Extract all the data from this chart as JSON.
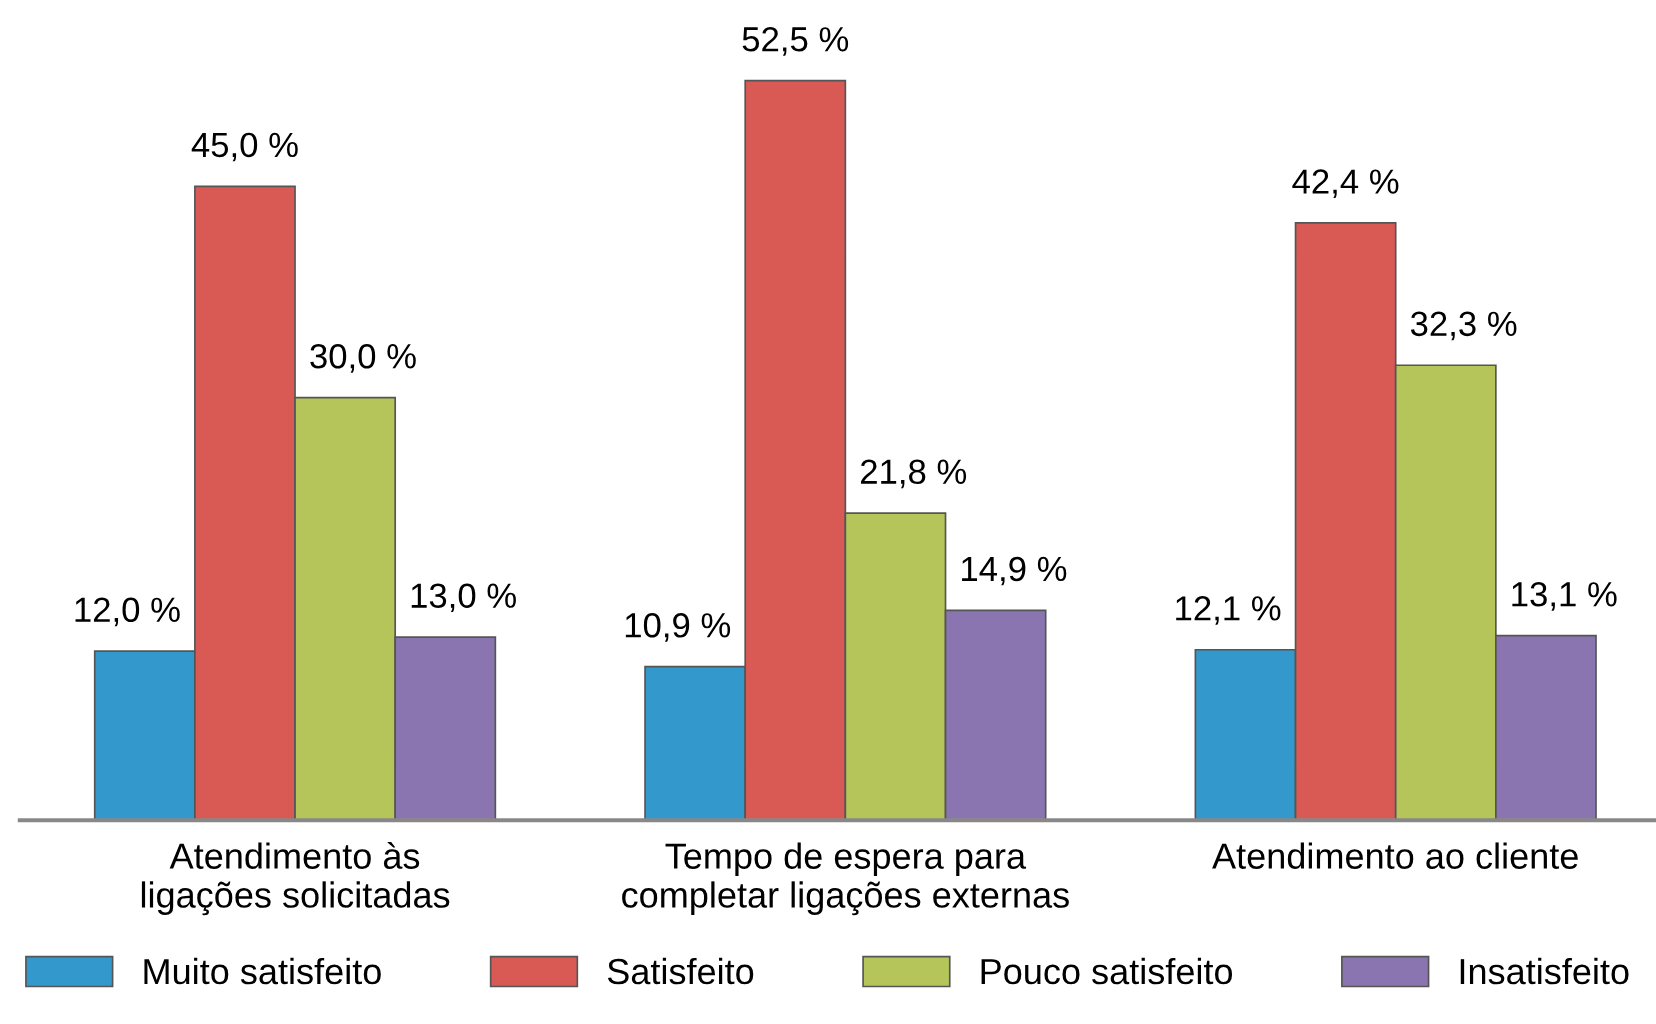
{
  "chart_data": {
    "type": "bar",
    "categories": [
      "Atendimento às\nligações solicitadas",
      "Tempo de espera para\ncompletar ligações externas",
      "Atendimento ao cliente"
    ],
    "series": [
      {
        "name": "Muito satisfeito",
        "color": "#3399cc",
        "values": [
          12.0,
          10.9,
          12.1
        ],
        "value_labels": [
          "12,0 %",
          "10,9 %",
          "12,1 %"
        ]
      },
      {
        "name": "Satisfeito",
        "color": "#d95a55",
        "values": [
          45.0,
          52.5,
          42.4
        ],
        "value_labels": [
          "45,0 %",
          "52,5 %",
          "42,4 %"
        ]
      },
      {
        "name": "Pouco satisfeito",
        "color": "#b5c55a",
        "values": [
          30.0,
          21.8,
          32.3
        ],
        "value_labels": [
          "30,0 %",
          "21,8 %",
          "32,3 %"
        ]
      },
      {
        "name": "Insatisfeito",
        "color": "#8a75b0",
        "values": [
          13.0,
          14.9,
          13.1
        ],
        "value_labels": [
          "13,0 %",
          "14,9 %",
          "13,1 %"
        ]
      }
    ],
    "legend": "bottom",
    "grid": false,
    "tick_labels": "x"
  }
}
